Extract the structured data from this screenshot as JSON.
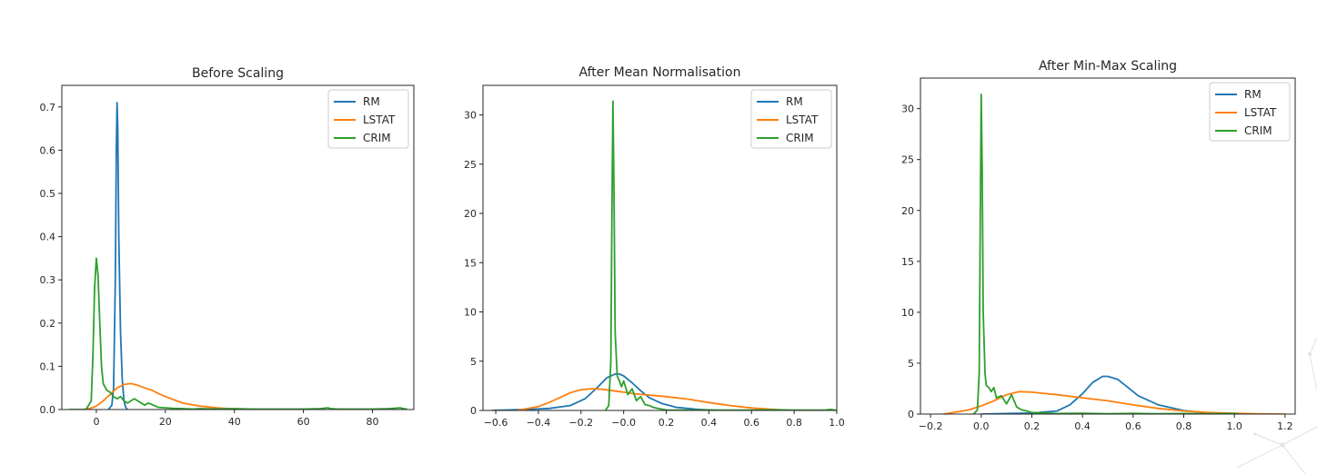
{
  "colors": {
    "RM": "#1f77b4",
    "LSTAT": "#ff7f0e",
    "CRIM": "#2ca02c",
    "axes": "#262626",
    "background": "#ffffff"
  },
  "chart_data": [
    {
      "type": "line",
      "title": "Before Scaling",
      "xlabel": "",
      "ylabel": "",
      "xlim": [
        -10,
        92
      ],
      "ylim": [
        0,
        0.75
      ],
      "xticks": [
        0,
        20,
        40,
        60,
        80
      ],
      "xtick_labels": [
        "0",
        "20",
        "40",
        "60",
        "80"
      ],
      "yticks": [
        0.0,
        0.1,
        0.2,
        0.3,
        0.4,
        0.5,
        0.6,
        0.7
      ],
      "ytick_labels": [
        "0.0",
        "0.1",
        "0.2",
        "0.3",
        "0.4",
        "0.5",
        "0.6",
        "0.7"
      ],
      "legend": [
        "RM",
        "LSTAT",
        "CRIM"
      ],
      "legend_position": "top-right",
      "grid": false,
      "series": [
        {
          "name": "RM",
          "x": [
            3.5,
            4.5,
            5.0,
            5.5,
            5.8,
            6.0,
            6.2,
            6.5,
            7.0,
            7.5,
            8.0,
            8.5,
            9.0
          ],
          "y": [
            0.0,
            0.01,
            0.05,
            0.3,
            0.6,
            0.71,
            0.65,
            0.4,
            0.18,
            0.07,
            0.02,
            0.005,
            0.0
          ]
        },
        {
          "name": "LSTAT",
          "x": [
            -4,
            -2,
            0,
            2,
            4,
            6,
            8,
            10,
            12,
            14,
            16,
            18,
            20,
            25,
            30,
            35,
            40
          ],
          "y": [
            0.0,
            0.002,
            0.008,
            0.02,
            0.035,
            0.05,
            0.058,
            0.06,
            0.056,
            0.05,
            0.045,
            0.037,
            0.03,
            0.015,
            0.008,
            0.004,
            0.001
          ]
        },
        {
          "name": "CRIM",
          "x": [
            -8,
            -3,
            -1.5,
            -1,
            -0.5,
            0,
            0.5,
            1,
            1.5,
            2,
            3,
            4,
            5,
            6,
            7,
            8,
            9,
            10,
            11,
            12,
            14,
            15,
            16,
            18,
            20,
            22,
            25,
            28,
            30,
            35,
            40,
            45,
            50,
            55,
            60,
            65,
            67,
            68,
            70,
            75,
            80,
            85,
            88,
            89,
            90
          ],
          "y": [
            0.0,
            0.0,
            0.02,
            0.12,
            0.28,
            0.35,
            0.31,
            0.2,
            0.1,
            0.06,
            0.045,
            0.04,
            0.03,
            0.025,
            0.03,
            0.02,
            0.015,
            0.02,
            0.025,
            0.02,
            0.01,
            0.015,
            0.012,
            0.005,
            0.004,
            0.003,
            0.002,
            0.001,
            0.002,
            0.001,
            0.002,
            0.001,
            0.001,
            0.001,
            0.001,
            0.002,
            0.004,
            0.002,
            0.001,
            0.001,
            0.001,
            0.002,
            0.004,
            0.002,
            0.001
          ]
        }
      ]
    },
    {
      "type": "line",
      "title": "After Mean Normalisation",
      "xlabel": "",
      "ylabel": "",
      "xlim": [
        -0.66,
        1.0
      ],
      "ylim": [
        0,
        33
      ],
      "xticks": [
        -0.6,
        -0.4,
        -0.2,
        0.0,
        0.2,
        0.4,
        0.6,
        0.8,
        1.0
      ],
      "xtick_labels": [
        "−0.6",
        "−0.4",
        "−0.2",
        "−0.0",
        "0.2",
        "0.4",
        "0.6",
        "0.8",
        "1.0"
      ],
      "yticks": [
        0,
        5,
        10,
        15,
        20,
        25,
        30
      ],
      "ytick_labels": [
        "0",
        "5",
        "10",
        "15",
        "20",
        "25",
        "30"
      ],
      "legend": [
        "RM",
        "LSTAT",
        "CRIM"
      ],
      "legend_position": "top-right",
      "grid": false,
      "series": [
        {
          "name": "RM",
          "x": [
            -0.62,
            -0.55,
            -0.45,
            -0.35,
            -0.25,
            -0.18,
            -0.12,
            -0.08,
            -0.04,
            -0.02,
            0.0,
            0.04,
            0.08,
            0.12,
            0.18,
            0.25,
            0.35,
            0.45
          ],
          "y": [
            0.0,
            0.05,
            0.1,
            0.2,
            0.5,
            1.2,
            2.4,
            3.3,
            3.7,
            3.7,
            3.5,
            2.8,
            2.0,
            1.3,
            0.7,
            0.3,
            0.1,
            0.0
          ]
        },
        {
          "name": "LSTAT",
          "x": [
            -0.5,
            -0.4,
            -0.35,
            -0.3,
            -0.25,
            -0.2,
            -0.15,
            -0.1,
            -0.05,
            0.0,
            0.05,
            0.1,
            0.15,
            0.2,
            0.3,
            0.4,
            0.5,
            0.6,
            0.7,
            0.8
          ],
          "y": [
            0.0,
            0.4,
            0.8,
            1.3,
            1.8,
            2.1,
            2.2,
            2.15,
            2.0,
            1.85,
            1.7,
            1.6,
            1.5,
            1.4,
            1.15,
            0.8,
            0.5,
            0.25,
            0.1,
            0.0
          ]
        },
        {
          "name": "CRIM",
          "x": [
            -0.085,
            -0.07,
            -0.06,
            -0.055,
            -0.05,
            -0.045,
            -0.04,
            -0.03,
            -0.02,
            -0.01,
            0.0,
            0.02,
            0.04,
            0.06,
            0.08,
            0.1,
            0.12,
            0.14,
            0.16,
            0.2,
            0.3,
            0.4,
            0.5,
            0.6,
            0.7,
            0.8,
            0.9,
            0.95,
            0.97,
            1.0
          ],
          "y": [
            0.0,
            0.5,
            5.0,
            20.0,
            31.4,
            22.0,
            8.0,
            3.5,
            3.0,
            2.4,
            3.0,
            1.6,
            2.2,
            1.0,
            1.4,
            0.6,
            0.5,
            0.3,
            0.2,
            0.05,
            0.03,
            0.05,
            0.03,
            0.04,
            0.06,
            0.04,
            0.03,
            0.05,
            0.1,
            0.0
          ]
        }
      ]
    },
    {
      "type": "line",
      "title": "After Min-Max Scaling",
      "xlabel": "",
      "ylabel": "",
      "xlim": [
        -0.24,
        1.24
      ],
      "ylim": [
        0,
        33
      ],
      "xticks": [
        -0.2,
        0.0,
        0.2,
        0.4,
        0.6,
        0.8,
        1.0,
        1.2
      ],
      "xtick_labels": [
        "−0.2",
        "0.0",
        "0.2",
        "0.4",
        "0.6",
        "0.8",
        "1.0",
        "1.2"
      ],
      "yticks": [
        0,
        5,
        10,
        15,
        20,
        25,
        30
      ],
      "ytick_labels": [
        "0",
        "5",
        "10",
        "15",
        "20",
        "25",
        "30"
      ],
      "legend": [
        "RM",
        "LSTAT",
        "CRIM"
      ],
      "legend_position": "top-right",
      "grid": false,
      "series": [
        {
          "name": "RM",
          "x": [
            0.0,
            0.1,
            0.2,
            0.3,
            0.35,
            0.4,
            0.44,
            0.48,
            0.5,
            0.54,
            0.58,
            0.62,
            0.7,
            0.8,
            0.9,
            1.0,
            1.05
          ],
          "y": [
            0.0,
            0.05,
            0.1,
            0.3,
            0.9,
            2.0,
            3.1,
            3.7,
            3.7,
            3.4,
            2.6,
            1.8,
            0.9,
            0.35,
            0.1,
            0.02,
            0.0
          ]
        },
        {
          "name": "LSTAT",
          "x": [
            -0.15,
            -0.05,
            0.0,
            0.05,
            0.1,
            0.15,
            0.2,
            0.3,
            0.4,
            0.5,
            0.6,
            0.7,
            0.8,
            0.9,
            1.0,
            1.1,
            1.2
          ],
          "y": [
            0.0,
            0.4,
            0.8,
            1.3,
            1.9,
            2.2,
            2.15,
            1.9,
            1.6,
            1.3,
            0.9,
            0.55,
            0.3,
            0.15,
            0.07,
            0.02,
            0.0
          ]
        },
        {
          "name": "CRIM",
          "x": [
            -0.03,
            -0.015,
            -0.008,
            -0.004,
            0.0,
            0.004,
            0.008,
            0.015,
            0.02,
            0.03,
            0.04,
            0.05,
            0.06,
            0.08,
            0.1,
            0.12,
            0.14,
            0.16,
            0.18,
            0.2,
            0.3,
            0.4,
            0.5,
            0.6,
            0.7,
            0.8,
            0.9,
            1.0,
            1.02
          ],
          "y": [
            0.0,
            0.4,
            4.0,
            18.0,
            31.4,
            24.0,
            10.0,
            4.0,
            2.8,
            2.6,
            2.2,
            2.6,
            1.6,
            1.8,
            1.0,
            1.9,
            0.7,
            0.4,
            0.3,
            0.15,
            0.05,
            0.08,
            0.04,
            0.06,
            0.03,
            0.05,
            0.03,
            0.05,
            0.0
          ]
        }
      ]
    }
  ]
}
